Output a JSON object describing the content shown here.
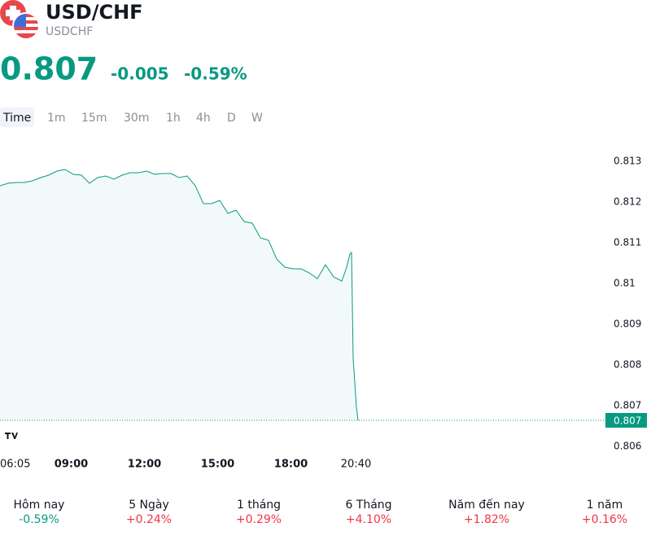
{
  "header": {
    "title": "USD/CHF",
    "symbol": "USDCHF",
    "price": "0.807",
    "change": "-0.005",
    "change_percent": "-0.59%"
  },
  "tabs": [
    "Time",
    "1m",
    "15m",
    "30m",
    "1h",
    "4h",
    "D",
    "W"
  ],
  "chart_data": {
    "type": "area",
    "color": "#089981",
    "x": [
      "06:05",
      "06:25",
      "06:45",
      "07:05",
      "07:25",
      "07:45",
      "08:05",
      "08:25",
      "08:45",
      "09:05",
      "09:25",
      "09:45",
      "10:05",
      "10:25",
      "10:45",
      "11:05",
      "11:25",
      "11:45",
      "12:05",
      "12:25",
      "12:45",
      "13:05",
      "13:25",
      "13:45",
      "14:05",
      "14:25",
      "14:45",
      "15:05",
      "15:25",
      "15:45",
      "16:05",
      "16:25",
      "16:45",
      "17:05",
      "17:25",
      "17:45",
      "18:05",
      "18:25",
      "18:45",
      "19:05",
      "19:25",
      "19:45",
      "20:05",
      "20:17",
      "20:25",
      "20:29",
      "20:33",
      "20:37",
      "20:41",
      "20:45"
    ],
    "values": [
      0.8124,
      0.81246,
      0.81248,
      0.81248,
      0.81252,
      0.8126,
      0.81266,
      0.81276,
      0.8128,
      0.81268,
      0.81266,
      0.81246,
      0.8126,
      0.81264,
      0.81256,
      0.81266,
      0.81272,
      0.81272,
      0.81276,
      0.81268,
      0.8127,
      0.8127,
      0.8126,
      0.81264,
      0.8124,
      0.81196,
      0.81196,
      0.81204,
      0.81172,
      0.8118,
      0.81152,
      0.81148,
      0.81112,
      0.81106,
      0.8106,
      0.8104,
      0.81036,
      0.81036,
      0.81026,
      0.81012,
      0.81046,
      0.81016,
      0.81006,
      0.8104,
      0.81072,
      0.81076,
      0.80816,
      0.80756,
      0.80696,
      0.80664
    ],
    "xlim": [
      "06:05",
      "20:45"
    ],
    "xticks": [
      "06:05",
      "09:00",
      "12:00",
      "15:00",
      "18:00",
      "20:40"
    ],
    "ylim": [
      0.8058,
      0.8138
    ],
    "yticks": [
      0.806,
      0.807,
      0.808,
      0.809,
      0.81,
      0.811,
      0.812,
      0.813
    ],
    "price_line": {
      "value": 0.80664,
      "label": "0.807"
    }
  },
  "periods": [
    {
      "name": "Hôm nay",
      "value": "-0.59%",
      "color": "#089981"
    },
    {
      "name": "5 Ngày",
      "value": "+0.24%",
      "color": "#f23645"
    },
    {
      "name": "1 tháng",
      "value": "+0.29%",
      "color": "#f23645"
    },
    {
      "name": "6 Tháng",
      "value": "+4.10%",
      "color": "#f23645"
    },
    {
      "name": "Năm đến nay",
      "value": "+1.82%",
      "color": "#f23645"
    },
    {
      "name": "1 năm",
      "value": "+0.16%",
      "color": "#f23645"
    }
  ]
}
